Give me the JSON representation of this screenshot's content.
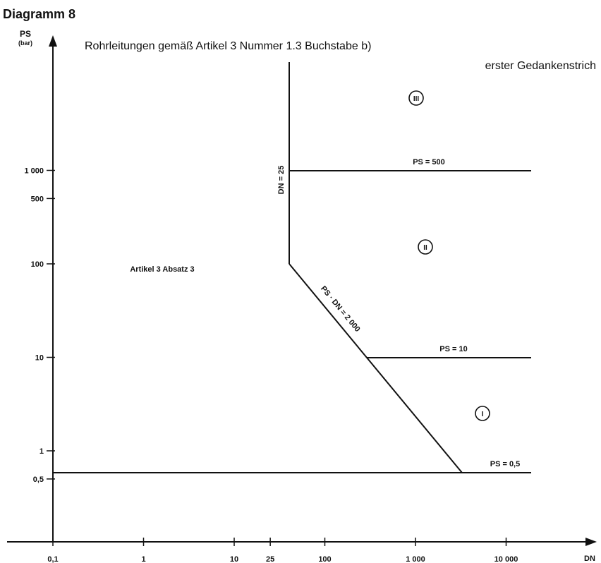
{
  "header": {
    "title": "Diagramm 8",
    "subtitle_line1": "Rohrleitungen gemäß Artikel 3 Nummer 1.3 Buchstabe b)",
    "subtitle_line2": "erster Gedankenstrich"
  },
  "axes": {
    "y_name": "PS",
    "y_unit": "(bar)",
    "x_name": "DN"
  },
  "x_ticks": [
    {
      "value": 0.1,
      "label": "0,1"
    },
    {
      "value": 1,
      "label": "1"
    },
    {
      "value": 10,
      "label": "10"
    },
    {
      "value": 25,
      "label": "25"
    },
    {
      "value": 100,
      "label": "100"
    },
    {
      "value": 1000,
      "label": "1 000"
    },
    {
      "value": 10000,
      "label": "10 000"
    }
  ],
  "y_ticks": [
    {
      "value": 0.5,
      "label": "0,5"
    },
    {
      "value": 1,
      "label": "1"
    },
    {
      "value": 10,
      "label": "10"
    },
    {
      "value": 100,
      "label": "100"
    },
    {
      "value": 500,
      "label": "500"
    },
    {
      "value": 1000,
      "label": "1 000"
    }
  ],
  "boundary_labels": {
    "dn25": "DN = 25",
    "ps500": "PS = 500",
    "psdn": "PS · DN = 2 000",
    "ps10": "PS = 10",
    "ps05": "PS = 0,5"
  },
  "regions": {
    "excluded": "Artikel 3  Absatz 3",
    "cat1": "I",
    "cat2": "II",
    "cat3": "III"
  }
}
